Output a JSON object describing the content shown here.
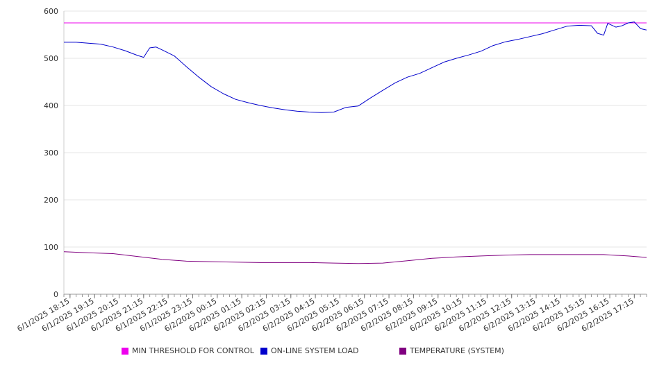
{
  "chart_data": {
    "type": "line",
    "title": "",
    "xlabel": "",
    "ylabel": "",
    "ylim": [
      0,
      600
    ],
    "yticks": [
      0,
      100,
      200,
      300,
      400,
      500,
      600
    ],
    "x_tick_labels": [
      "6/1/2025 18:15",
      "6/1/2025 19:15",
      "6/1/2025 20:15",
      "6/1/2025 21:15",
      "6/1/2025 22:15",
      "6/1/2025 23:15",
      "6/2/2025 00:15",
      "6/2/2025 01:15",
      "6/2/2025 02:15",
      "6/2/2025 03:15",
      "6/2/2025 04:15",
      "6/2/2025 05:15",
      "6/2/2025 06:15",
      "6/2/2025 07:15",
      "6/2/2025 08:15",
      "6/2/2025 09:15",
      "6/2/2025 10:15",
      "6/2/2025 11:15",
      "6/2/2025 12:15",
      "6/2/2025 13:15",
      "6/2/2025 14:15",
      "6/2/2025 15:15",
      "6/2/2025 16:15",
      "6/2/2025 17:15"
    ],
    "x_range": [
      "6/1/2025 18:00",
      "6/2/2025 17:45"
    ],
    "grid": true,
    "legend_position": "bottom",
    "series": [
      {
        "name": "MIN THRESHOLD FOR CONTROL",
        "color": "#ee00ee",
        "points": [
          [
            "6/1/2025 18:00",
            575
          ],
          [
            "6/2/2025 17:45",
            575
          ]
        ]
      },
      {
        "name": "ON-LINE SYSTEM LOAD",
        "color": "#0000cc",
        "points": [
          [
            "6/1/2025 18:00",
            534
          ],
          [
            "6/1/2025 18:30",
            534
          ],
          [
            "6/1/2025 19:00",
            532
          ],
          [
            "6/1/2025 19:30",
            530
          ],
          [
            "6/1/2025 20:00",
            524
          ],
          [
            "6/1/2025 20:30",
            516
          ],
          [
            "6/1/2025 21:00",
            506
          ],
          [
            "6/1/2025 21:15",
            502
          ],
          [
            "6/1/2025 21:30",
            522
          ],
          [
            "6/1/2025 21:45",
            524
          ],
          [
            "6/1/2025 22:00",
            518
          ],
          [
            "6/1/2025 22:30",
            505
          ],
          [
            "6/1/2025 23:00",
            482
          ],
          [
            "6/1/2025 23:30",
            460
          ],
          [
            "6/2/2025 00:00",
            440
          ],
          [
            "6/2/2025 00:30",
            425
          ],
          [
            "6/2/2025 01:00",
            413
          ],
          [
            "6/2/2025 01:30",
            406
          ],
          [
            "6/2/2025 02:00",
            400
          ],
          [
            "6/2/2025 02:30",
            395
          ],
          [
            "6/2/2025 03:00",
            391
          ],
          [
            "6/2/2025 03:30",
            388
          ],
          [
            "6/2/2025 04:00",
            386
          ],
          [
            "6/2/2025 04:30",
            385
          ],
          [
            "6/2/2025 05:00",
            386
          ],
          [
            "6/2/2025 05:30",
            396
          ],
          [
            "6/2/2025 06:00",
            399
          ],
          [
            "6/2/2025 06:30",
            416
          ],
          [
            "6/2/2025 07:00",
            432
          ],
          [
            "6/2/2025 07:30",
            448
          ],
          [
            "6/2/2025 08:00",
            460
          ],
          [
            "6/2/2025 08:30",
            468
          ],
          [
            "6/2/2025 09:00",
            480
          ],
          [
            "6/2/2025 09:30",
            492
          ],
          [
            "6/2/2025 10:00",
            500
          ],
          [
            "6/2/2025 10:30",
            507
          ],
          [
            "6/2/2025 11:00",
            515
          ],
          [
            "6/2/2025 11:30",
            527
          ],
          [
            "6/2/2025 12:00",
            535
          ],
          [
            "6/2/2025 12:30",
            540
          ],
          [
            "6/2/2025 13:00",
            546
          ],
          [
            "6/2/2025 13:30",
            552
          ],
          [
            "6/2/2025 14:00",
            560
          ],
          [
            "6/2/2025 14:30",
            568
          ],
          [
            "6/2/2025 15:00",
            570
          ],
          [
            "6/2/2025 15:30",
            569
          ],
          [
            "6/2/2025 15:45",
            553
          ],
          [
            "6/2/2025 16:00",
            549
          ],
          [
            "6/2/2025 16:10",
            574
          ],
          [
            "6/2/2025 16:30",
            566
          ],
          [
            "6/2/2025 16:45",
            569
          ],
          [
            "6/2/2025 17:00",
            575
          ],
          [
            "6/2/2025 17:15",
            577
          ],
          [
            "6/2/2025 17:30",
            563
          ],
          [
            "6/2/2025 17:45",
            560
          ]
        ]
      },
      {
        "name": "TEMPERATURE (SYSTEM)",
        "color": "#800080",
        "points": [
          [
            "6/1/2025 18:00",
            90
          ],
          [
            "6/1/2025 19:00",
            88
          ],
          [
            "6/1/2025 20:00",
            86
          ],
          [
            "6/1/2025 21:00",
            80
          ],
          [
            "6/1/2025 22:00",
            74
          ],
          [
            "6/1/2025 23:00",
            70
          ],
          [
            "6/2/2025 00:00",
            69
          ],
          [
            "6/2/2025 01:00",
            68
          ],
          [
            "6/2/2025 02:00",
            67
          ],
          [
            "6/2/2025 03:00",
            67
          ],
          [
            "6/2/2025 04:00",
            67
          ],
          [
            "6/2/2025 05:00",
            66
          ],
          [
            "6/2/2025 06:00",
            65
          ],
          [
            "6/2/2025 07:00",
            66
          ],
          [
            "6/2/2025 08:00",
            71
          ],
          [
            "6/2/2025 09:00",
            76
          ],
          [
            "6/2/2025 10:00",
            79
          ],
          [
            "6/2/2025 11:00",
            81
          ],
          [
            "6/2/2025 12:00",
            83
          ],
          [
            "6/2/2025 13:00",
            84
          ],
          [
            "6/2/2025 14:00",
            84
          ],
          [
            "6/2/2025 15:00",
            84
          ],
          [
            "6/2/2025 16:00",
            84
          ],
          [
            "6/2/2025 17:00",
            81
          ],
          [
            "6/2/2025 17:45",
            78
          ]
        ]
      }
    ]
  }
}
